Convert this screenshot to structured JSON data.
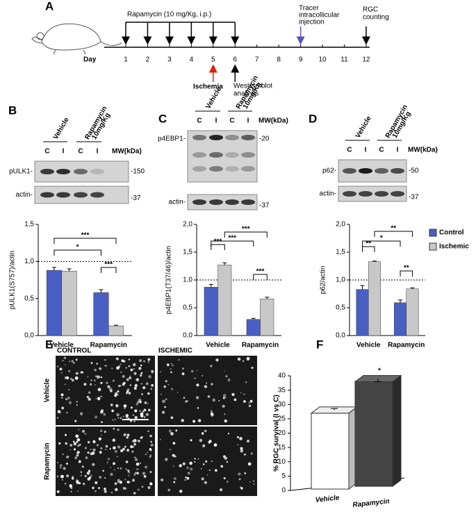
{
  "panel_labels": [
    "A",
    "B",
    "C",
    "D",
    "E",
    "F"
  ],
  "timeline": {
    "treatment": "Rapamycin (10 mg/Kg, i.p.)",
    "day_label": "Day",
    "days": [
      "1",
      "2",
      "3",
      "4",
      "5",
      "6",
      "7",
      "8",
      "9",
      "10",
      "11",
      "12"
    ],
    "tracer": [
      "Tracer",
      "intracollicular",
      "injection"
    ],
    "counting": [
      "RGC",
      "counting"
    ],
    "ischemia": "Ischemia",
    "western": [
      "Western blot",
      "analysis"
    ]
  },
  "blots": [
    {
      "groups": [
        "Vehicle",
        "Rapamycin",
        "10mg/Kg"
      ],
      "lanes": [
        "C",
        "I",
        "C",
        "I"
      ],
      "mw_header": "MW(kDa)",
      "rows": [
        {
          "label": "pULK1-",
          "mw": "-150"
        },
        {
          "label": "actin-",
          "mw": "-37"
        }
      ]
    },
    {
      "groups": [
        "Vehicle",
        "Rapamycin",
        "10mg/Kg"
      ],
      "lanes": [
        "C",
        "I",
        "C",
        "I"
      ],
      "mw_header": "MW(kDa)",
      "rows": [
        {
          "label": "p4EBP1-",
          "mw": "-20"
        },
        {
          "label": "actin-",
          "mw": "-37"
        }
      ]
    },
    {
      "groups": [
        "Vehicle",
        "Rapamycin",
        "10mg/Kg"
      ],
      "lanes": [
        "C",
        "I",
        "C",
        "I"
      ],
      "mw_header": "MW(kDa)",
      "rows": [
        {
          "label": "p62-",
          "mw": "-50"
        },
        {
          "label": "actin-",
          "mw": "-37"
        }
      ]
    }
  ],
  "micrographs": {
    "columns": [
      "CONTROL",
      "ISCHEMIC"
    ],
    "rows": [
      "Vehicle",
      "Rapamycin"
    ]
  },
  "chart_data": [
    {
      "type": "bar",
      "ylabel": "pULK1(S757)/actin",
      "categories": [
        "Vehicle",
        "Rapamycin"
      ],
      "series": [
        {
          "name": "Control",
          "color": "#4a5fc4",
          "values": [
            0.88,
            0.58
          ],
          "errors": [
            0.04,
            0.04
          ]
        },
        {
          "name": "Ischemic",
          "color": "#c8c8c8",
          "values": [
            0.87,
            0.13
          ],
          "errors": [
            0.03,
            0.01
          ]
        }
      ],
      "ylim": [
        0,
        1.5
      ],
      "yticks": [
        {
          "value": 0,
          "label": "0,0"
        },
        {
          "value": 0.5,
          "label": "0,5"
        },
        {
          "value": 1,
          "label": "1,0"
        },
        {
          "value": 1.5,
          "label": "1,5"
        }
      ],
      "reference_line": 1,
      "annotations": [
        "***",
        "*",
        "***"
      ]
    },
    {
      "type": "bar",
      "ylabel": "p4EBP1(T37/46)/actin",
      "categories": [
        "Vehicle",
        "Rapamycin"
      ],
      "series": [
        {
          "name": "Control",
          "color": "#4a5fc4",
          "values": [
            0.87,
            0.29
          ],
          "errors": [
            0.05,
            0.02
          ]
        },
        {
          "name": "Ischemic",
          "color": "#c8c8c8",
          "values": [
            1.27,
            0.66
          ],
          "errors": [
            0.04,
            0.03
          ]
        }
      ],
      "ylim": [
        0,
        2
      ],
      "yticks": [
        {
          "value": 0,
          "label": "0,0"
        },
        {
          "value": 0.5,
          "label": "0,5"
        },
        {
          "value": 1,
          "label": "1,0"
        },
        {
          "value": 1.5,
          "label": "1,5"
        },
        {
          "value": 2,
          "label": "2,0"
        }
      ],
      "reference_line": 1,
      "annotations": [
        "***",
        "***",
        "***",
        "***"
      ]
    },
    {
      "type": "bar",
      "ylabel": "p62/actin",
      "categories": [
        "Vehicle",
        "Rapamycin"
      ],
      "legend": "right",
      "series": [
        {
          "name": "Control",
          "color": "#4a5fc4",
          "values": [
            0.83,
            0.59
          ],
          "errors": [
            0.07,
            0.05
          ]
        },
        {
          "name": "Ischemic",
          "color": "#c8c8c8",
          "values": [
            1.33,
            0.84
          ],
          "errors": [
            0.01,
            0.02
          ]
        }
      ],
      "ylim": [
        0,
        2
      ],
      "yticks": [
        {
          "value": 0,
          "label": "0,0"
        },
        {
          "value": 0.5,
          "label": "0,5"
        },
        {
          "value": 1,
          "label": "1,0"
        },
        {
          "value": 1.5,
          "label": "1,5"
        },
        {
          "value": 2,
          "label": "2,0"
        }
      ],
      "reference_line": 1,
      "annotations": [
        "**",
        "**",
        "*",
        "**"
      ]
    },
    {
      "type": "bar3d",
      "ylabel": "% RGC survival (I vs C)",
      "categories": [
        "Vehicle",
        "Rapamycin"
      ],
      "values": [
        26.5,
        36.5
      ],
      "errors": [
        1.5,
        1.8
      ],
      "colors": [
        "#ffffff",
        "#454545"
      ],
      "ylim": [
        0,
        40
      ],
      "yticks": [
        0,
        5,
        10,
        15,
        20,
        25,
        30,
        35,
        40
      ],
      "annotations": [
        "*"
      ]
    }
  ]
}
